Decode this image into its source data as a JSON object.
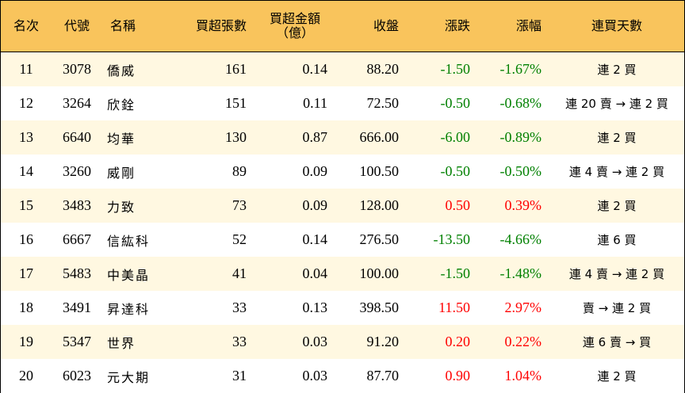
{
  "headers": {
    "rank": "名次",
    "code": "代號",
    "name": "名稱",
    "net_buy_lots": "買超張數",
    "net_buy_amount_line1": "買超金額",
    "net_buy_amount_line2": "（億）",
    "close": "收盤",
    "change": "漲跌",
    "change_pct": "漲幅",
    "streak": "連買天數"
  },
  "colors": {
    "header_bg": "#f9c45c",
    "alt_row_bg": "#fff8e1",
    "up": "#ff0000",
    "down": "#008000"
  },
  "rows": [
    {
      "rank": "11",
      "code": "3078",
      "name": "僑威",
      "lots": "161",
      "amount": "0.14",
      "close": "88.20",
      "change": "-1.50",
      "pct": "-1.67%",
      "dir": "down",
      "streak": "連 2 買"
    },
    {
      "rank": "12",
      "code": "3264",
      "name": "欣銓",
      "lots": "151",
      "amount": "0.11",
      "close": "72.50",
      "change": "-0.50",
      "pct": "-0.68%",
      "dir": "down",
      "streak": "連 20 賣 → 連 2 買"
    },
    {
      "rank": "13",
      "code": "6640",
      "name": "均華",
      "lots": "130",
      "amount": "0.87",
      "close": "666.00",
      "change": "-6.00",
      "pct": "-0.89%",
      "dir": "down",
      "streak": "連 2 買"
    },
    {
      "rank": "14",
      "code": "3260",
      "name": "威剛",
      "lots": "89",
      "amount": "0.09",
      "close": "100.50",
      "change": "-0.50",
      "pct": "-0.50%",
      "dir": "down",
      "streak": "連 4 賣 → 連 2 買"
    },
    {
      "rank": "15",
      "code": "3483",
      "name": "力致",
      "lots": "73",
      "amount": "0.09",
      "close": "128.00",
      "change": "0.50",
      "pct": "0.39%",
      "dir": "up",
      "streak": "連 2 買"
    },
    {
      "rank": "16",
      "code": "6667",
      "name": "信紘科",
      "lots": "52",
      "amount": "0.14",
      "close": "276.50",
      "change": "-13.50",
      "pct": "-4.66%",
      "dir": "down",
      "streak": "連 6 買"
    },
    {
      "rank": "17",
      "code": "5483",
      "name": "中美晶",
      "lots": "41",
      "amount": "0.04",
      "close": "100.00",
      "change": "-1.50",
      "pct": "-1.48%",
      "dir": "down",
      "streak": "連 4 賣 → 連 2 買"
    },
    {
      "rank": "18",
      "code": "3491",
      "name": "昇達科",
      "lots": "33",
      "amount": "0.13",
      "close": "398.50",
      "change": "11.50",
      "pct": "2.97%",
      "dir": "up",
      "streak": "賣 → 連 2 買"
    },
    {
      "rank": "19",
      "code": "5347",
      "name": "世界",
      "lots": "33",
      "amount": "0.03",
      "close": "91.20",
      "change": "0.20",
      "pct": "0.22%",
      "dir": "up",
      "streak": "連 6 賣 → 買"
    },
    {
      "rank": "20",
      "code": "6023",
      "name": "元大期",
      "lots": "31",
      "amount": "0.03",
      "close": "87.70",
      "change": "0.90",
      "pct": "1.04%",
      "dir": "up",
      "streak": "連 2 買"
    }
  ]
}
